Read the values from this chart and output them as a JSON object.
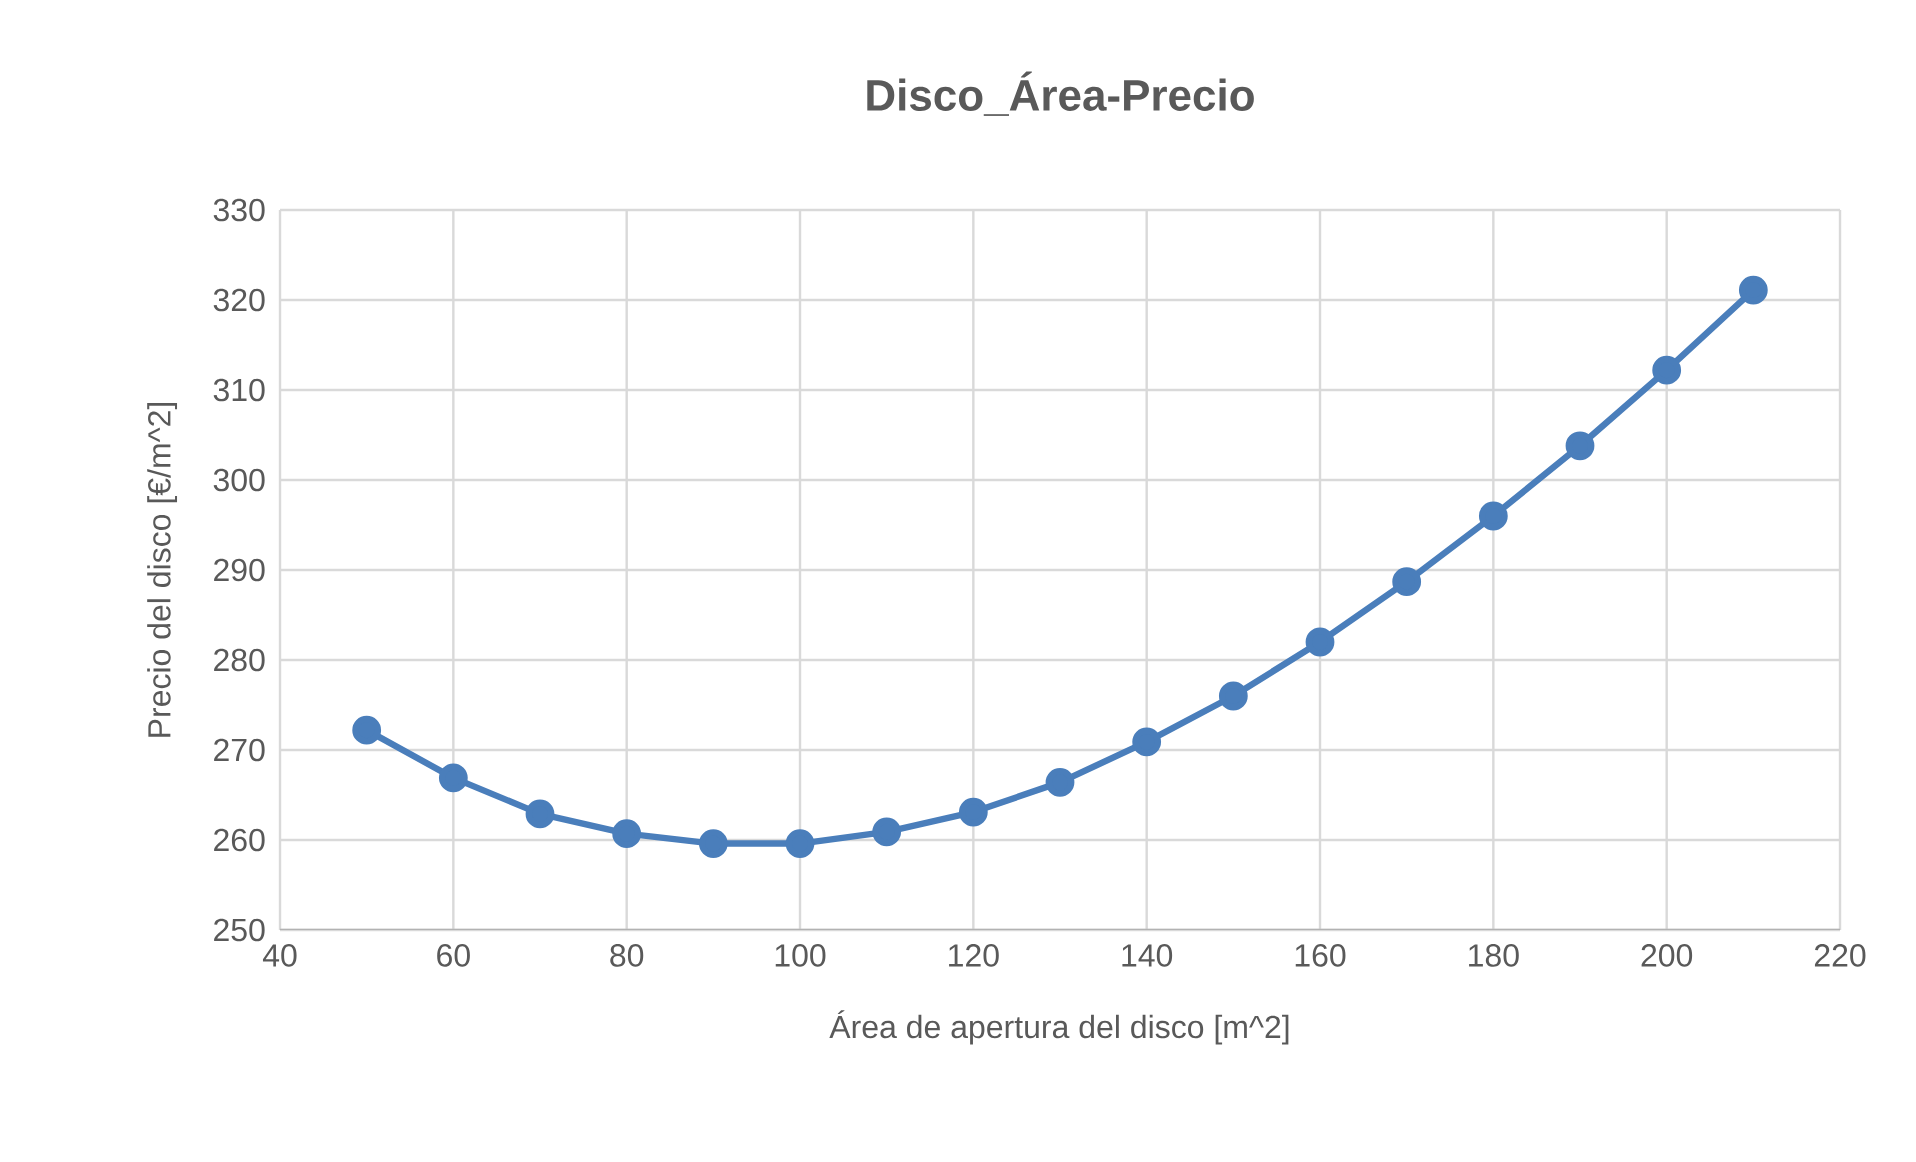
{
  "chart_data": {
    "type": "line",
    "title": "Disco_Área-Precio",
    "xlabel": "Área de apertura del disco [m^2]",
    "ylabel": "Precio del disco [€/m^2]",
    "x": [
      50,
      60,
      70,
      80,
      90,
      100,
      110,
      120,
      130,
      140,
      150,
      160,
      170,
      180,
      190,
      200,
      210
    ],
    "series": [
      {
        "color": "#4a7ebb",
        "values": [
          272.2,
          266.9,
          262.9,
          260.7,
          259.6,
          259.6,
          260.9,
          263.1,
          266.4,
          270.9,
          276.0,
          282.0,
          288.7,
          296.0,
          303.8,
          312.2,
          321.1
        ]
      }
    ],
    "xlim": [
      40,
      220
    ],
    "xticks": [
      40,
      60,
      80,
      100,
      120,
      140,
      160,
      180,
      200,
      220
    ],
    "ylim": [
      250,
      330
    ],
    "yticks": [
      250,
      260,
      270,
      280,
      290,
      300,
      310,
      320,
      330
    ],
    "grid": true,
    "marker": "circle",
    "line_style": "solid"
  }
}
